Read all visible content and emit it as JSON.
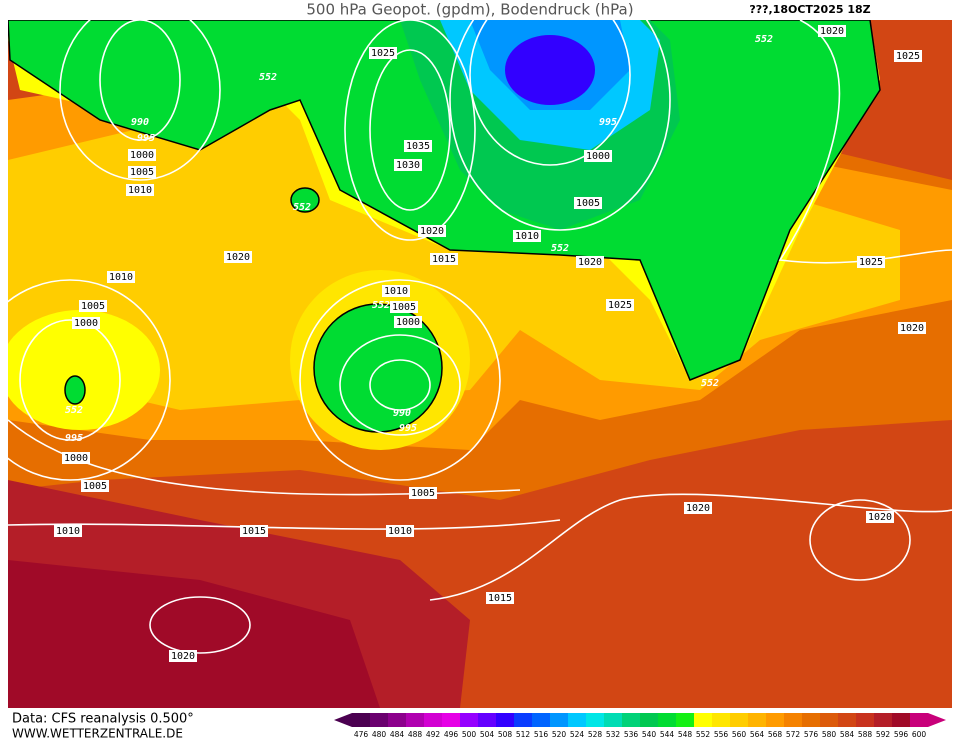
{
  "header": {
    "title": "500 hPa Geopot. (gpdm), Bodendruck (hPa)",
    "timestamp": "???,18OCT2025 18Z"
  },
  "footer": {
    "source": "Data: CFS reanalysis 0.500°",
    "website": "WWW.WETTERZENTRALE.DE"
  },
  "legend": {
    "values": [
      476,
      480,
      484,
      488,
      492,
      496,
      500,
      504,
      508,
      512,
      516,
      520,
      524,
      528,
      532,
      536,
      540,
      544,
      548,
      552,
      556,
      560,
      564,
      568,
      572,
      576,
      580,
      584,
      588,
      592,
      596,
      600
    ],
    "colors": [
      "#4b0050",
      "#6a006e",
      "#8c008c",
      "#b000b0",
      "#d200d2",
      "#e600e6",
      "#9600ff",
      "#6400ff",
      "#3200ff",
      "#0a3cff",
      "#0064ff",
      "#0096ff",
      "#00c8ff",
      "#00e6e6",
      "#00dcb4",
      "#00d278",
      "#00c850",
      "#00dc32",
      "#14f014",
      "#ffff00",
      "#ffe600",
      "#ffcd00",
      "#ffb400",
      "#ff9b00",
      "#f58200",
      "#e66e00",
      "#dc5a0a",
      "#d24614",
      "#c8321e",
      "#b41e28",
      "#a00a28",
      "#c8007a"
    ]
  },
  "map": {
    "isobar_labels": [
      "1025",
      "552",
      "990",
      "995",
      "1000",
      "1005",
      "1010",
      "1035",
      "1030",
      "552",
      "1020",
      "1020",
      "1015",
      "1010",
      "552",
      "1020",
      "1005",
      "1000",
      "995",
      "552",
      "1020",
      "1025",
      "1025",
      "1020",
      "1010",
      "1005",
      "1000",
      "552",
      "995",
      "1000",
      "1005",
      "1010",
      "1015",
      "1010",
      "1005",
      "1010",
      "552",
      "1005",
      "1000",
      "990",
      "995",
      "1025",
      "552",
      "1020",
      "1020",
      "1015",
      "1020"
    ]
  }
}
